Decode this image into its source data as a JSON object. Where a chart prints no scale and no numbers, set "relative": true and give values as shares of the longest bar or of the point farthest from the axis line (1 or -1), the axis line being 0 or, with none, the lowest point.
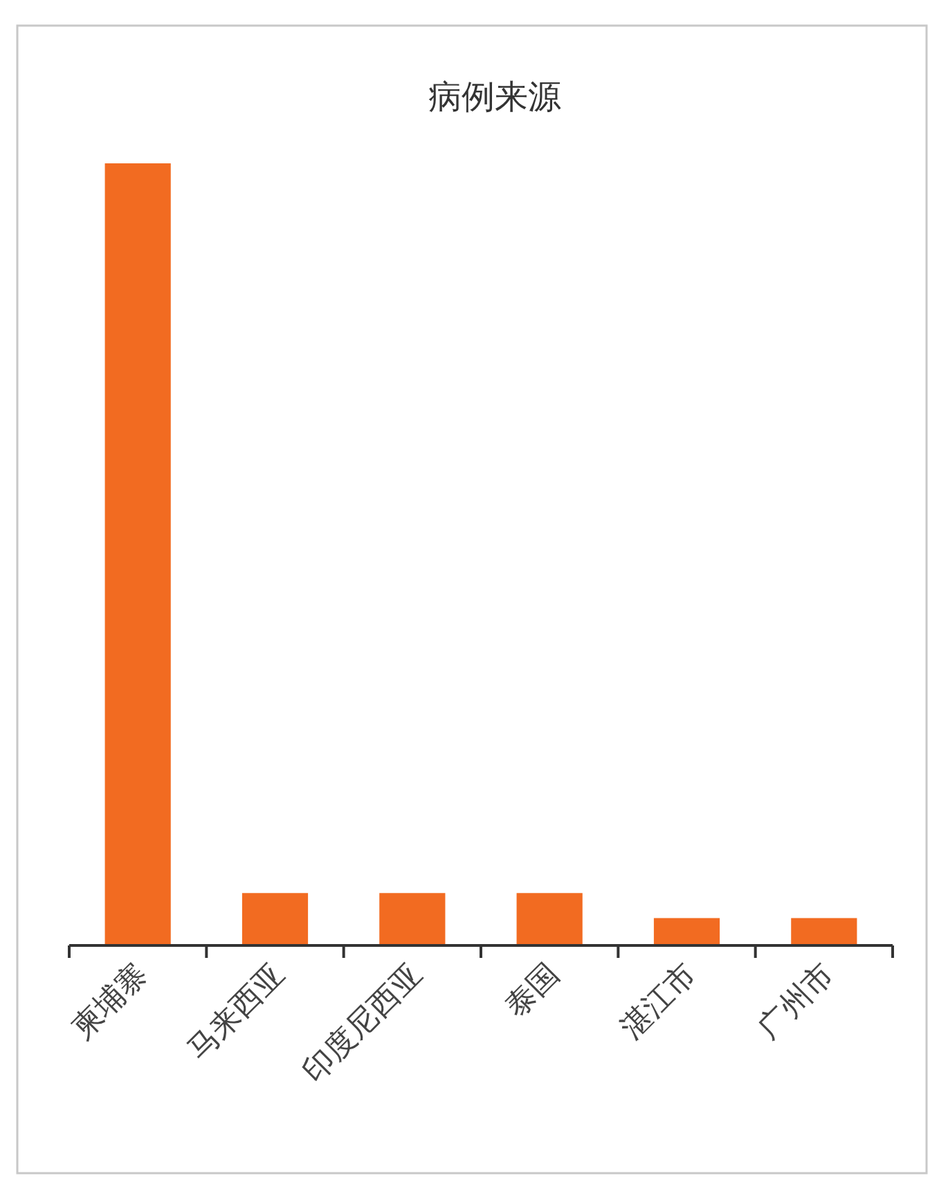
{
  "chart_data": {
    "type": "bar",
    "title": "病例来源",
    "categories": [
      "柬埔寨",
      "马来西亚",
      "印度尼西亚",
      "泰国",
      "湛江市",
      "广州市"
    ],
    "values": [
      1,
      0.067,
      0.067,
      0.067,
      0.035,
      0.035
    ],
    "color": "#f26b21",
    "relative": true
  }
}
